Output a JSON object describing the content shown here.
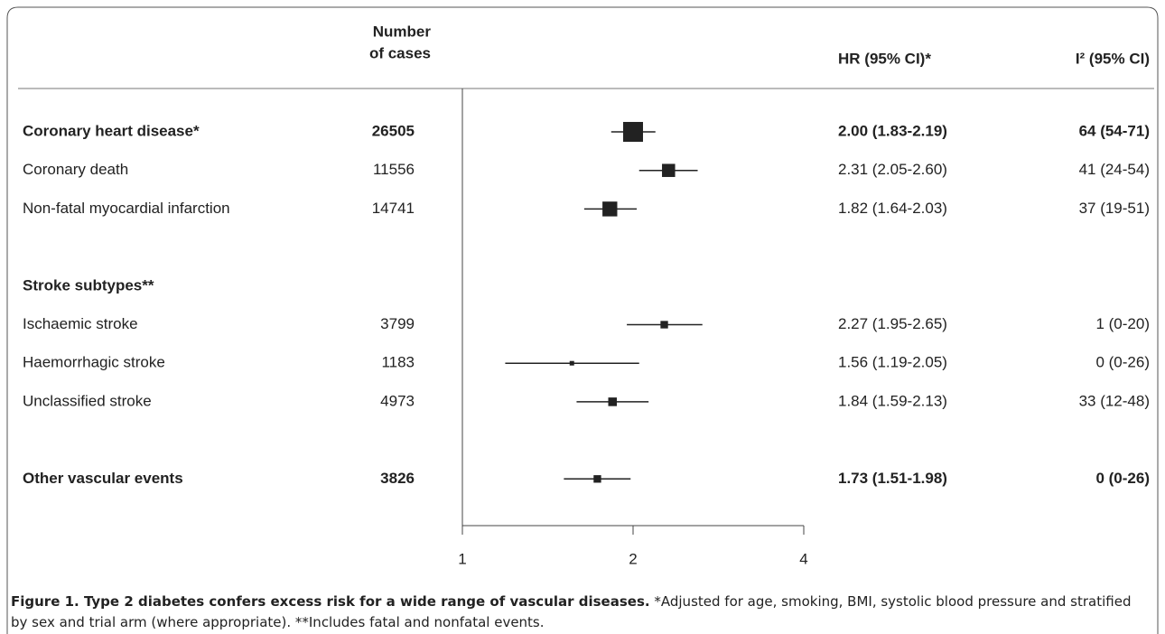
{
  "chart_data": {
    "type": "forest",
    "headers": {
      "cases": [
        "Number",
        "of cases"
      ],
      "hr": "HR (95% CI)*",
      "i2": "I² (95% CI)"
    },
    "rows": [
      {
        "label": "Coronary heart disease*",
        "bold": true,
        "cases": 26505,
        "hr": 2.0,
        "lo": 1.83,
        "hi": 2.19,
        "hr_label": "2.00 (1.83-2.19)",
        "i2_label": "64 (54-71)"
      },
      {
        "label": "Coronary death",
        "bold": false,
        "cases": 11556,
        "hr": 2.31,
        "lo": 2.05,
        "hi": 2.6,
        "hr_label": "2.31 (2.05-2.60)",
        "i2_label": "41 (24-54)"
      },
      {
        "label": "Non-fatal myocardial infarction",
        "bold": false,
        "cases": 14741,
        "hr": 1.82,
        "lo": 1.64,
        "hi": 2.03,
        "hr_label": "1.82 (1.64-2.03)",
        "i2_label": "37 (19-51)"
      },
      {
        "label": "Stroke subtypes**",
        "bold": true
      },
      {
        "label": "Ischaemic stroke",
        "bold": false,
        "cases": 3799,
        "hr": 2.27,
        "lo": 1.95,
        "hi": 2.65,
        "hr_label": "2.27 (1.95-2.65)",
        "i2_label": "1 (0-20)"
      },
      {
        "label": "Haemorrhagic stroke",
        "bold": false,
        "cases": 1183,
        "hr": 1.56,
        "lo": 1.19,
        "hi": 2.05,
        "hr_label": "1.56 (1.19-2.05)",
        "i2_label": "0 (0-26)"
      },
      {
        "label": "Unclassified stroke",
        "bold": false,
        "cases": 4973,
        "hr": 1.84,
        "lo": 1.59,
        "hi": 2.13,
        "hr_label": "1.84 (1.59-2.13)",
        "i2_label": "33 (12-48)"
      },
      {
        "label": "Other vascular events",
        "bold": true,
        "cases": 3826,
        "hr": 1.73,
        "lo": 1.51,
        "hi": 1.98,
        "hr_label": "1.73 (1.51-1.98)",
        "i2_label": "0 (0-26)"
      }
    ],
    "xlim": [
      1,
      4
    ],
    "xticks": [
      1,
      2,
      4
    ],
    "log_scale": true,
    "color": "#222222",
    "caption_title": "Figure 1. Type 2 diabetes confers excess risk for a wide range of vascular diseases.",
    "caption_text": "*Adjusted for age, smoking, BMI, systolic blood pressure and stratified by sex and trial arm (where appropriate). **Includes fatal and nonfatal events."
  }
}
